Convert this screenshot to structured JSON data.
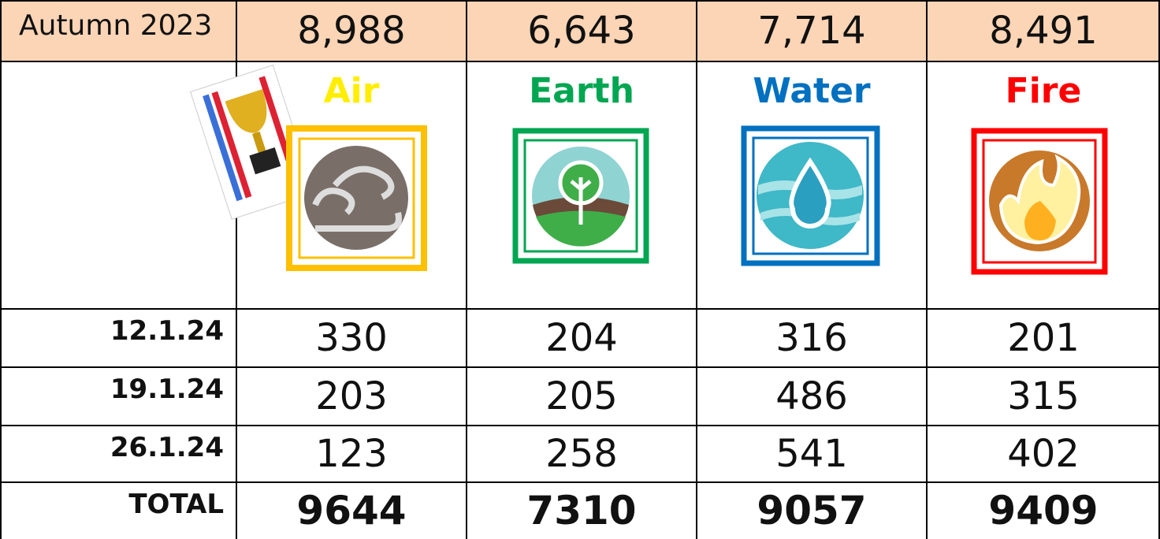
{
  "table": {
    "header": [
      "Autumn 2023",
      "8,988",
      "6,643",
      "7,714",
      "8,491"
    ],
    "houses": [
      "Air",
      "Earth",
      "Water",
      "Fire"
    ],
    "rows": [
      [
        "12.1.24",
        "330",
        "204",
        "316",
        "201"
      ],
      [
        "19.1.24",
        "203",
        "205",
        "486",
        "315"
      ],
      [
        "26.1.24",
        "123",
        "258",
        "541",
        "402"
      ]
    ],
    "total": [
      "TOTAL",
      "9644",
      "7310",
      "9057",
      "9409"
    ]
  }
}
